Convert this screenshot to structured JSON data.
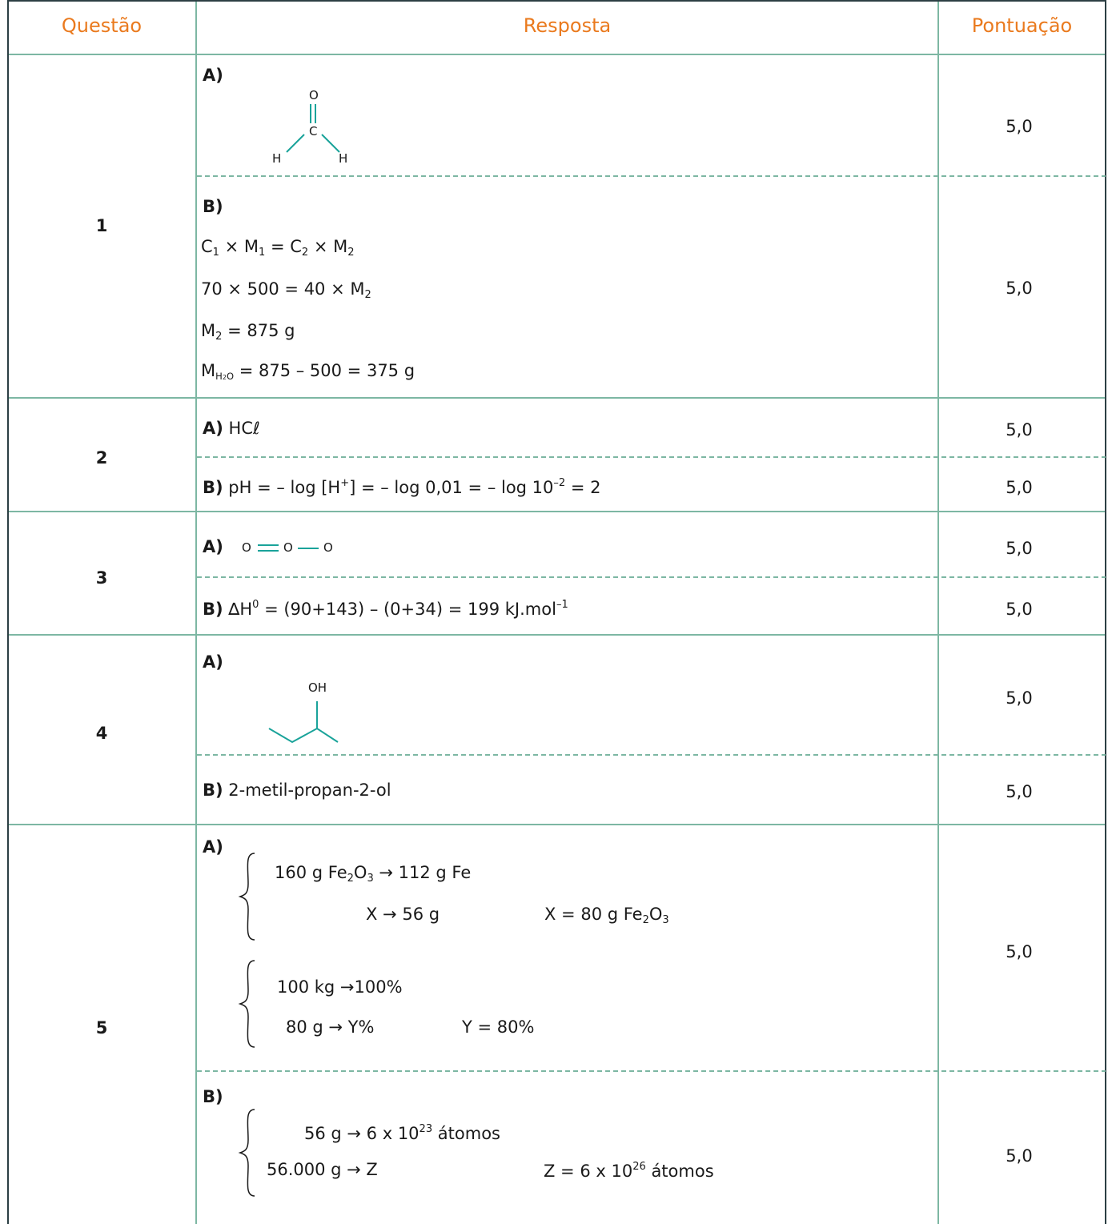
{
  "header": {
    "col_questao": "Questão",
    "col_resposta": "Resposta",
    "col_pontuacao": "Pontuação"
  },
  "q1": {
    "num": "1",
    "a": {
      "label": "A)",
      "atom_o": "O",
      "atom_c": "C",
      "atom_h1": "H",
      "atom_h2": "H",
      "score": "5,0"
    },
    "b": {
      "label": "B)",
      "eq1": {
        "c1": "C",
        "s1": "1",
        "m1": " × M",
        "s2": "1",
        "eq": " = C",
        "s3": "2",
        "m2": " × M",
        "s4": "2"
      },
      "eq2": {
        "text": "70 × 500 = 40 × M",
        "sub": "2"
      },
      "eq3": {
        "m": "M",
        "sub": "2",
        "rest": " = 875 g"
      },
      "eq4": {
        "m": "M",
        "sub_h": "H",
        "sub_2": "2",
        "sub_o": "O",
        "rest": " =  875 –  500 = 375 g"
      },
      "score": "5,0"
    }
  },
  "q2": {
    "num": "2",
    "a": {
      "label": "A)",
      "text": " HCℓ",
      "score": "5,0"
    },
    "b": {
      "label": "B)",
      "t1": " pH = –  log [H",
      "sup1": "+",
      "t2": "] = –  log 0,01 = –  log 10",
      "sup2": "–2",
      "t3": " = 2",
      "score": "5,0"
    }
  },
  "q3": {
    "num": "3",
    "a": {
      "label": "A)",
      "o1": "O",
      "o2": "O",
      "o3": "O",
      "score": "5,0"
    },
    "b": {
      "label": "B)",
      "t1": " ∆H",
      "sup1": "0",
      "t2": " = (90+143) –  (0+34) = 199 kJ.mol",
      "sup2": "–1",
      "score": "5,0"
    }
  },
  "q4": {
    "num": "4",
    "a": {
      "label": "A)",
      "oh": "OH",
      "score": "5,0"
    },
    "b": {
      "label": "B)",
      "text": " 2-metil-propan-2-ol",
      "score": "5,0"
    }
  },
  "q5": {
    "num": "5",
    "a": {
      "label": "A)",
      "l1": {
        "t1": "160 g Fe",
        "s1": "2",
        "t2": "O",
        "s2": "3",
        "t3": " → 112 g Fe"
      },
      "l2": {
        "t1": "X → 56 g"
      },
      "l2r": {
        "t1": "X = 80 g Fe",
        "s1": "2",
        "t2": "O",
        "s2": "3"
      },
      "l3": {
        "t1": "100 kg →100%"
      },
      "l4": {
        "t1": "80 g → Y%"
      },
      "l4r": {
        "t1": "Y = 80%"
      },
      "score": "5,0"
    },
    "b": {
      "label": "B)",
      "l1": {
        "t1": "56 g  →  6 x 10",
        "sup": "23",
        "t2": " átomos"
      },
      "l2": {
        "t1": "56.000 g → Z"
      },
      "l2r": {
        "t1": "Z = 6 x 10",
        "sup": "26",
        "t2": " átomos"
      },
      "score": "5,0"
    }
  },
  "colors": {
    "grid": "#7db7a3",
    "header_text": "#ea7a1e",
    "bond": "#1aa39a",
    "border": "#2c3f44"
  }
}
